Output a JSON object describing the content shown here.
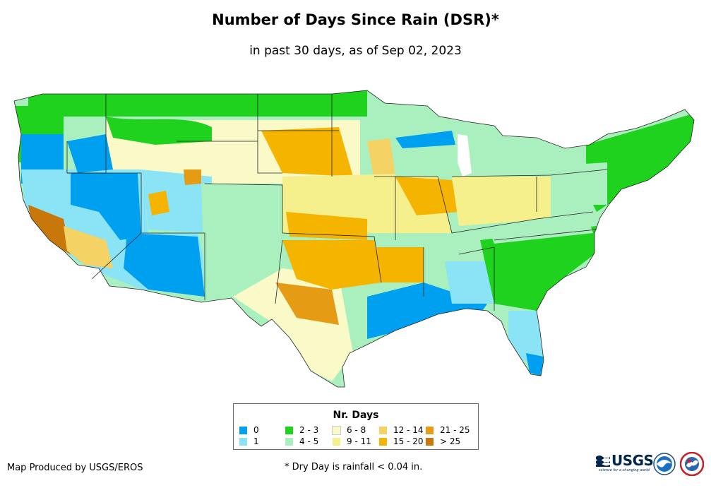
{
  "title": "Number of Days Since Rain (DSR)*",
  "subtitle": "in past 30 days, as of Sep 02, 2023",
  "legend": {
    "title": "Nr. Days",
    "items": [
      {
        "label": "0",
        "color": "#00a0f0"
      },
      {
        "label": "1",
        "color": "#8ae4f6"
      },
      {
        "label": "2 - 3",
        "color": "#1ed21e"
      },
      {
        "label": "4 - 5",
        "color": "#aaf0be"
      },
      {
        "label": "6 - 8",
        "color": "#fafac8"
      },
      {
        "label": "9 - 11",
        "color": "#f5f08c"
      },
      {
        "label": "12 - 14",
        "color": "#f5d264"
      },
      {
        "label": "15 - 20",
        "color": "#f5b400"
      },
      {
        "label": "21 - 25",
        "color": "#e69b14"
      },
      {
        "label": "> 25",
        "color": "#c8780a"
      }
    ]
  },
  "footer": {
    "credit": "Map Produced by USGS/EROS",
    "note": "* Dry Day is rainfall < 0.04 in."
  },
  "logos": {
    "usgs_text": "USGS",
    "usgs_tagline": "science for a changing world"
  }
}
